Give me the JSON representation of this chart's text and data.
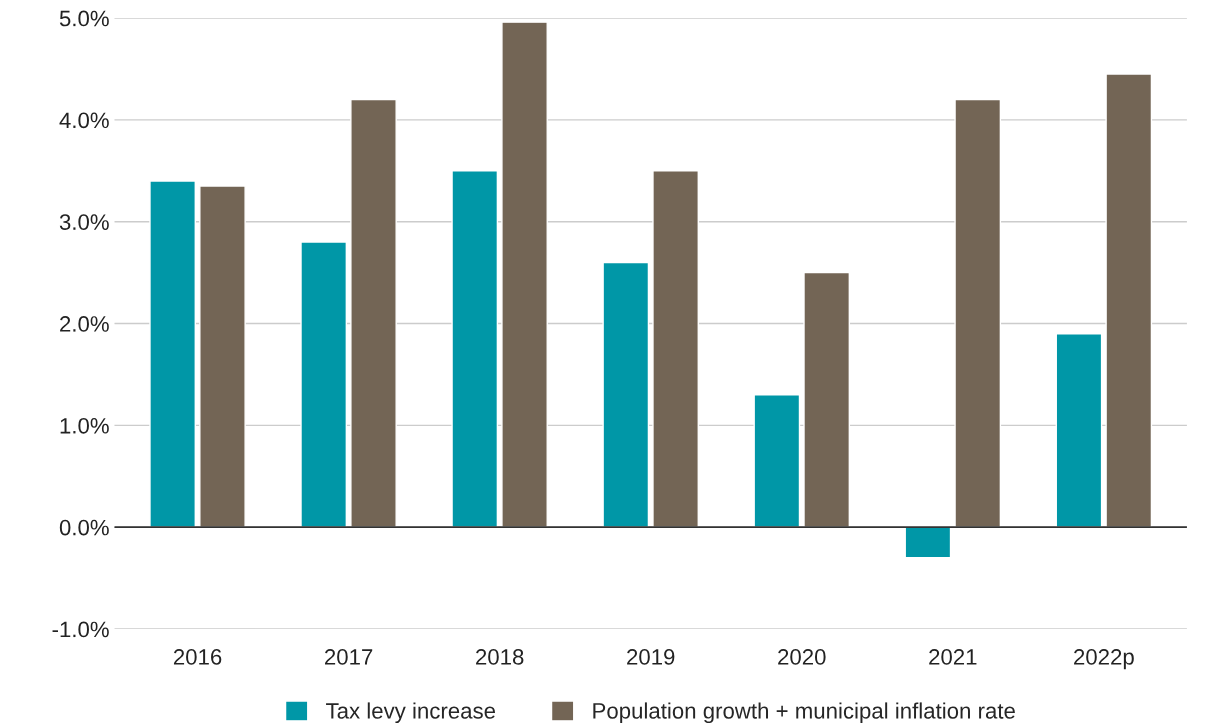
{
  "chart_data": {
    "type": "bar",
    "categories": [
      "2016",
      "2017",
      "2018",
      "2019",
      "2020",
      "2021",
      "2022p"
    ],
    "series": [
      {
        "name": "Tax levy increase",
        "color": "#0097a7",
        "values": [
          3.4,
          2.8,
          3.5,
          2.6,
          1.3,
          -0.3,
          1.9
        ]
      },
      {
        "name": "Population growth + municipal inflation rate",
        "color": "#736555",
        "values": [
          3.35,
          4.2,
          4.96,
          3.5,
          2.5,
          4.2,
          4.45
        ]
      }
    ],
    "ylim": [
      -1.0,
      5.0
    ],
    "yticks": [
      {
        "value": -1.0,
        "label": "-1.0%"
      },
      {
        "value": 0.0,
        "label": "0.0%"
      },
      {
        "value": 1.0,
        "label": "1.0%"
      },
      {
        "value": 2.0,
        "label": "2.0%"
      },
      {
        "value": 3.0,
        "label": "3.0%"
      },
      {
        "value": 4.0,
        "label": "4.0%"
      },
      {
        "value": 5.0,
        "label": "5.0%"
      }
    ],
    "grid": "y",
    "legend": "bottom"
  }
}
